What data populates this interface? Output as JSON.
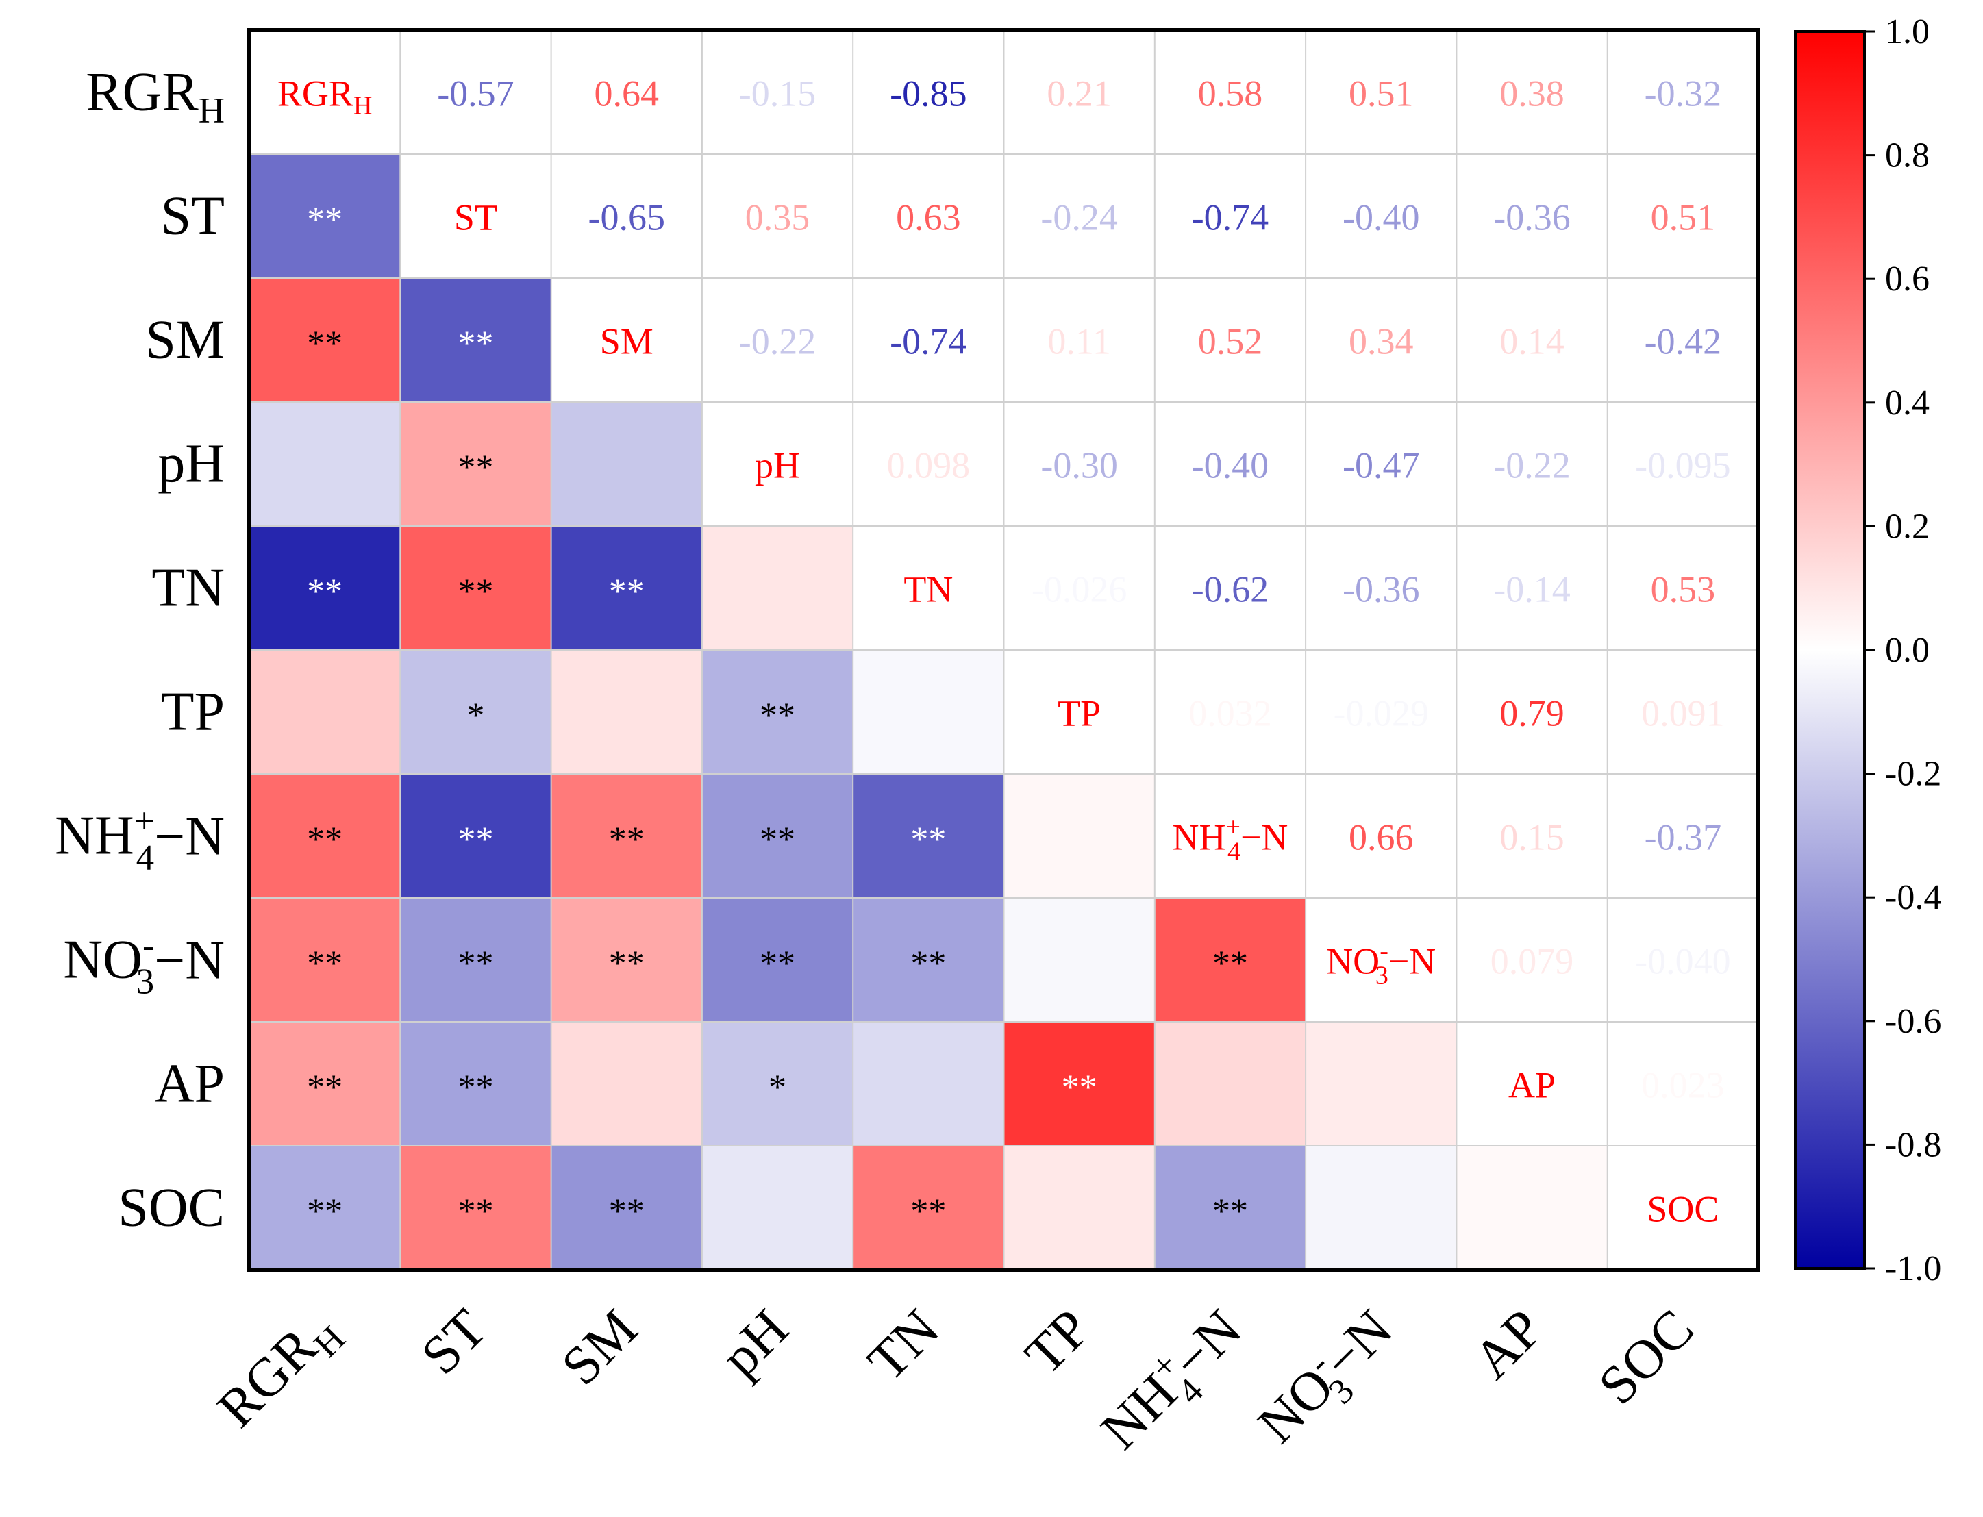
{
  "chart_data": {
    "type": "heatmap",
    "title": "",
    "variables": [
      {
        "name": "RGR",
        "sub": "H",
        "sup": "",
        "suffix": ""
      },
      {
        "name": "ST",
        "sub": "",
        "sup": "",
        "suffix": ""
      },
      {
        "name": "SM",
        "sub": "",
        "sup": "",
        "suffix": ""
      },
      {
        "name": "pH",
        "sub": "",
        "sup": "",
        "suffix": ""
      },
      {
        "name": "TN",
        "sub": "",
        "sup": "",
        "suffix": ""
      },
      {
        "name": "TP",
        "sub": "",
        "sup": "",
        "suffix": ""
      },
      {
        "name": "NH",
        "sub": "4",
        "sup": "+",
        "suffix": "−N"
      },
      {
        "name": "NO",
        "sub": "3",
        "sup": "-",
        "suffix": "−N"
      },
      {
        "name": "AP",
        "sub": "",
        "sup": "",
        "suffix": ""
      },
      {
        "name": "SOC",
        "sub": "",
        "sup": "",
        "suffix": ""
      }
    ],
    "correlation_labels": [
      [
        "",
        "-0.57",
        "0.64",
        "-0.15",
        "-0.85",
        "0.21",
        "0.58",
        "0.51",
        "0.38",
        "-0.32"
      ],
      [
        "-0.57",
        "",
        "-0.65",
        "0.35",
        "0.63",
        "-0.24",
        "-0.74",
        "-0.40",
        "-0.36",
        "0.51"
      ],
      [
        "0.64",
        "-0.65",
        "",
        "-0.22",
        "-0.74",
        "0.11",
        "0.52",
        "0.34",
        "0.14",
        "-0.42"
      ],
      [
        "-0.15",
        "0.35",
        "-0.22",
        "",
        "0.098",
        "-0.30",
        "-0.40",
        "-0.47",
        "-0.22",
        "-0.095"
      ],
      [
        "-0.85",
        "0.63",
        "-0.74",
        "0.098",
        "",
        "-0.026",
        "-0.62",
        "-0.36",
        "-0.14",
        "0.53"
      ],
      [
        "0.21",
        "-0.24",
        "0.11",
        "-0.30",
        "-0.026",
        "",
        "0.032",
        "-0.029",
        "0.79",
        "0.091"
      ],
      [
        "0.58",
        "-0.74",
        "0.52",
        "-0.40",
        "-0.62",
        "0.032",
        "",
        "0.66",
        "0.15",
        "-0.37"
      ],
      [
        "0.51",
        "-0.40",
        "0.34",
        "-0.47",
        "-0.36",
        "-0.029",
        "0.66",
        "",
        "0.079",
        "-0.040"
      ],
      [
        "0.38",
        "-0.36",
        "0.14",
        "-0.22",
        "-0.14",
        "0.79",
        "0.15",
        "0.079",
        "",
        "0.023"
      ],
      [
        "-0.32",
        "0.51",
        "-0.42",
        "-0.095",
        "0.53",
        "0.091",
        "-0.37",
        "-0.040",
        "0.023",
        ""
      ]
    ],
    "significance": [
      [
        "",
        "",
        "",
        "",
        "",
        "",
        "",
        "",
        "",
        ""
      ],
      [
        "**",
        "",
        "",
        "",
        "",
        "",
        "",
        "",
        "",
        ""
      ],
      [
        "**",
        "**",
        "",
        "",
        "",
        "",
        "",
        "",
        "",
        ""
      ],
      [
        "",
        "**",
        "",
        "",
        "",
        "",
        "",
        "",
        "",
        ""
      ],
      [
        "**",
        "**",
        "**",
        "",
        "",
        "",
        "",
        "",
        "",
        ""
      ],
      [
        "",
        "*",
        "",
        "**",
        "",
        "",
        "",
        "",
        "",
        ""
      ],
      [
        "**",
        "**",
        "**",
        "**",
        "**",
        "",
        "",
        "",
        "",
        ""
      ],
      [
        "**",
        "**",
        "**",
        "**",
        "**",
        "",
        "**",
        "",
        "",
        ""
      ],
      [
        "**",
        "**",
        "",
        "*",
        "",
        "**",
        "",
        "",
        "",
        ""
      ],
      [
        "**",
        "**",
        "**",
        "",
        "**",
        "",
        "**",
        "",
        "",
        ""
      ]
    ],
    "lower_triangle": "significance stars on colored cells",
    "upper_triangle": "correlation coefficients",
    "diagonal": "variable names",
    "colorbar": {
      "range": [
        -1.0,
        1.0
      ],
      "ticks": [
        "1.0",
        "0.8",
        "0.6",
        "0.4",
        "0.2",
        "0.0",
        "-0.2",
        "-0.4",
        "-0.6",
        "-0.8",
        "-1.0"
      ],
      "colors": {
        "negative": "#0000a0",
        "zero": "#ffffff",
        "positive": "#ff0000"
      },
      "placement": "right"
    }
  }
}
